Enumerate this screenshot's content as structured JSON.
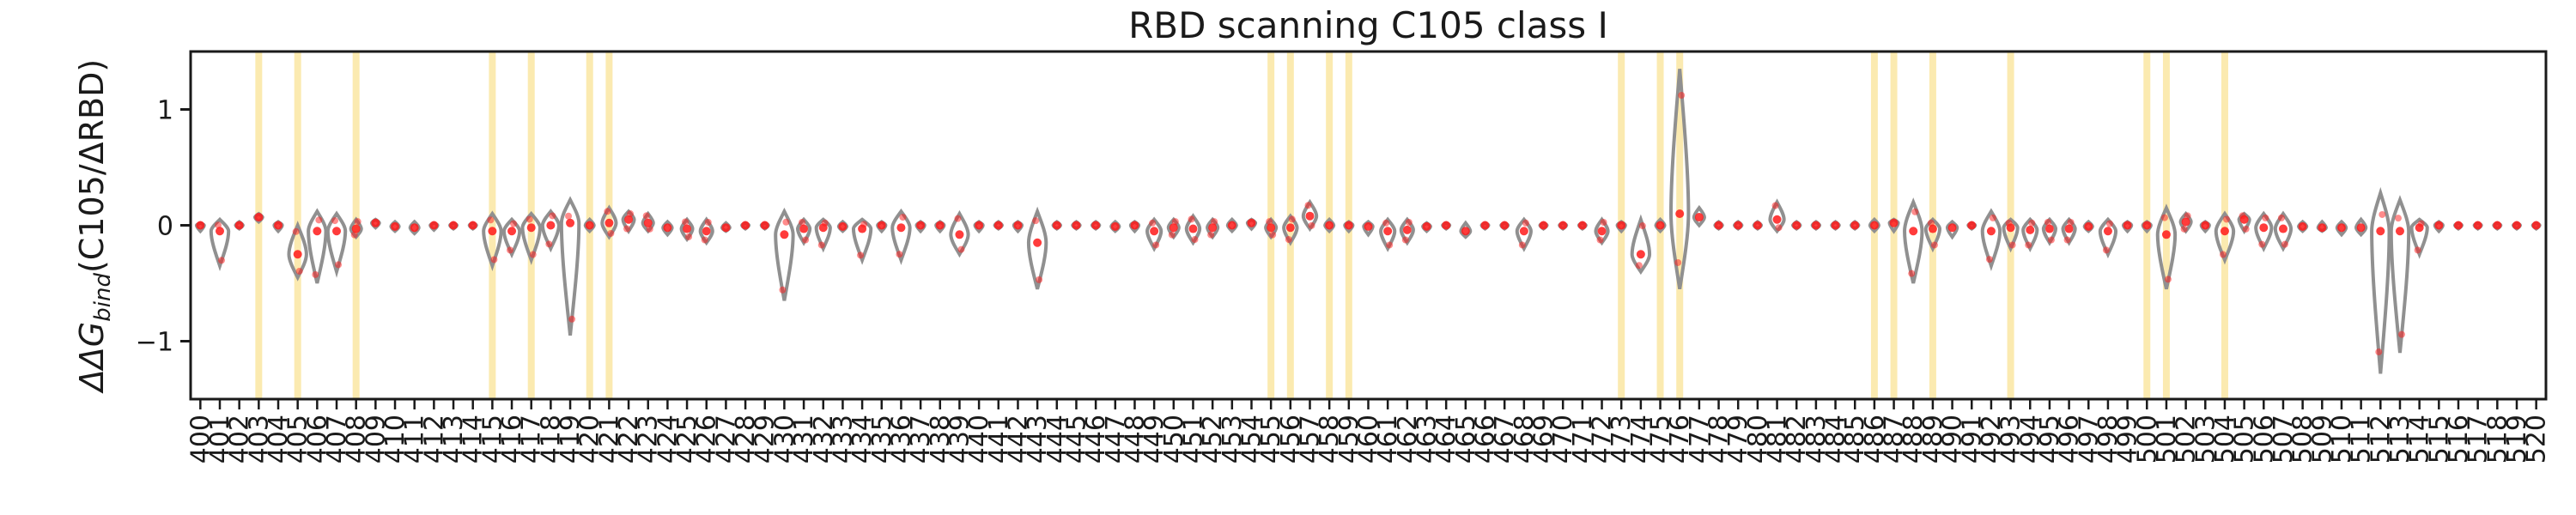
{
  "chart_data": {
    "type": "violin",
    "title": "RBD scanning C105 class I",
    "ylabel_parts": {
      "delta": "ΔΔG",
      "subscript": "bind",
      "rest": "(C105/ΔRBD)"
    },
    "xlabel": "",
    "x_range": [
      400,
      520
    ],
    "ylim": [
      -1.5,
      1.5
    ],
    "y_ticks": [
      -1,
      0,
      1
    ],
    "grid": false,
    "legend": "none",
    "colors": {
      "violin_stroke": "#909090",
      "point": "#ff1a1a",
      "highlight_band": "#fbeab0",
      "axis": "#1a1a1a"
    },
    "highlighted_sites": [
      403,
      405,
      408,
      415,
      417,
      420,
      421,
      455,
      456,
      458,
      459,
      473,
      475,
      476,
      486,
      487,
      489,
      493,
      500,
      501,
      504
    ],
    "sites": [
      {
        "site": 400,
        "min": -0.05,
        "max": 0.02,
        "center": 0.0
      },
      {
        "site": 401,
        "min": -0.35,
        "max": 0.05,
        "center": -0.05
      },
      {
        "site": 402,
        "min": -0.03,
        "max": 0.03,
        "center": 0.0
      },
      {
        "site": 403,
        "min": 0.03,
        "max": 0.1,
        "center": 0.07
      },
      {
        "site": 404,
        "min": -0.05,
        "max": 0.03,
        "center": 0.0
      },
      {
        "site": 405,
        "min": -0.45,
        "max": 0.0,
        "center": -0.25
      },
      {
        "site": 406,
        "min": -0.5,
        "max": 0.12,
        "center": -0.05
      },
      {
        "site": 407,
        "min": -0.4,
        "max": 0.1,
        "center": -0.05
      },
      {
        "site": 408,
        "min": -0.1,
        "max": 0.05,
        "center": -0.03
      },
      {
        "site": 409,
        "min": -0.02,
        "max": 0.05,
        "center": 0.02
      },
      {
        "site": 410,
        "min": -0.05,
        "max": 0.03,
        "center": -0.01
      },
      {
        "site": 411,
        "min": -0.07,
        "max": 0.03,
        "center": -0.02
      },
      {
        "site": 412,
        "min": -0.04,
        "max": 0.02,
        "center": 0.0
      },
      {
        "site": 413,
        "min": -0.03,
        "max": 0.02,
        "center": 0.0
      },
      {
        "site": 414,
        "min": -0.03,
        "max": 0.02,
        "center": 0.0
      },
      {
        "site": 415,
        "min": -0.35,
        "max": 0.1,
        "center": -0.05
      },
      {
        "site": 416,
        "min": -0.25,
        "max": 0.05,
        "center": -0.05
      },
      {
        "site": 417,
        "min": -0.3,
        "max": 0.1,
        "center": -0.02
      },
      {
        "site": 418,
        "min": -0.2,
        "max": 0.12,
        "center": 0.0
      },
      {
        "site": 419,
        "min": -0.95,
        "max": 0.22,
        "center": 0.02
      },
      {
        "site": 420,
        "min": -0.05,
        "max": 0.05,
        "center": 0.0
      },
      {
        "site": 421,
        "min": -0.1,
        "max": 0.15,
        "center": 0.02
      },
      {
        "site": 422,
        "min": -0.05,
        "max": 0.12,
        "center": 0.05
      },
      {
        "site": 423,
        "min": -0.05,
        "max": 0.1,
        "center": 0.02
      },
      {
        "site": 424,
        "min": -0.08,
        "max": 0.03,
        "center": -0.02
      },
      {
        "site": 425,
        "min": -0.12,
        "max": 0.05,
        "center": -0.03
      },
      {
        "site": 426,
        "min": -0.15,
        "max": 0.05,
        "center": -0.05
      },
      {
        "site": 427,
        "min": -0.05,
        "max": 0.02,
        "center": -0.02
      },
      {
        "site": 428,
        "min": -0.03,
        "max": 0.02,
        "center": 0.0
      },
      {
        "site": 429,
        "min": -0.03,
        "max": 0.02,
        "center": 0.0
      },
      {
        "site": 430,
        "min": -0.65,
        "max": 0.12,
        "center": -0.08
      },
      {
        "site": 431,
        "min": -0.15,
        "max": 0.05,
        "center": -0.03
      },
      {
        "site": 432,
        "min": -0.2,
        "max": 0.05,
        "center": -0.02
      },
      {
        "site": 433,
        "min": -0.05,
        "max": 0.03,
        "center": -0.01
      },
      {
        "site": 434,
        "min": -0.3,
        "max": 0.05,
        "center": -0.03
      },
      {
        "site": 435,
        "min": -0.05,
        "max": 0.03,
        "center": 0.0
      },
      {
        "site": 436,
        "min": -0.3,
        "max": 0.12,
        "center": -0.02
      },
      {
        "site": 437,
        "min": -0.05,
        "max": 0.03,
        "center": 0.0
      },
      {
        "site": 438,
        "min": -0.05,
        "max": 0.03,
        "center": 0.0
      },
      {
        "site": 439,
        "min": -0.25,
        "max": 0.1,
        "center": -0.08
      },
      {
        "site": 440,
        "min": -0.05,
        "max": 0.03,
        "center": 0.0
      },
      {
        "site": 441,
        "min": -0.03,
        "max": 0.03,
        "center": 0.0
      },
      {
        "site": 442,
        "min": -0.05,
        "max": 0.03,
        "center": 0.0
      },
      {
        "site": 443,
        "min": -0.55,
        "max": 0.12,
        "center": -0.15
      },
      {
        "site": 444,
        "min": -0.03,
        "max": 0.03,
        "center": 0.0
      },
      {
        "site": 445,
        "min": -0.03,
        "max": 0.03,
        "center": 0.0
      },
      {
        "site": 446,
        "min": -0.03,
        "max": 0.03,
        "center": 0.0
      },
      {
        "site": 447,
        "min": -0.05,
        "max": 0.03,
        "center": -0.01
      },
      {
        "site": 448,
        "min": -0.05,
        "max": 0.03,
        "center": 0.0
      },
      {
        "site": 449,
        "min": -0.2,
        "max": 0.05,
        "center": -0.05
      },
      {
        "site": 450,
        "min": -0.1,
        "max": 0.05,
        "center": -0.02
      },
      {
        "site": 451,
        "min": -0.15,
        "max": 0.08,
        "center": -0.03
      },
      {
        "site": 452,
        "min": -0.1,
        "max": 0.05,
        "center": -0.02
      },
      {
        "site": 453,
        "min": -0.05,
        "max": 0.05,
        "center": 0.0
      },
      {
        "site": 454,
        "min": -0.03,
        "max": 0.05,
        "center": 0.02
      },
      {
        "site": 455,
        "min": -0.1,
        "max": 0.05,
        "center": -0.02
      },
      {
        "site": 456,
        "min": -0.15,
        "max": 0.08,
        "center": -0.02
      },
      {
        "site": 457,
        "min": -0.03,
        "max": 0.2,
        "center": 0.08
      },
      {
        "site": 458,
        "min": -0.05,
        "max": 0.05,
        "center": 0.0
      },
      {
        "site": 459,
        "min": -0.05,
        "max": 0.03,
        "center": 0.0
      },
      {
        "site": 460,
        "min": -0.08,
        "max": 0.03,
        "center": -0.01
      },
      {
        "site": 461,
        "min": -0.2,
        "max": 0.05,
        "center": -0.05
      },
      {
        "site": 462,
        "min": -0.15,
        "max": 0.05,
        "center": -0.04
      },
      {
        "site": 463,
        "min": -0.05,
        "max": 0.02,
        "center": -0.01
      },
      {
        "site": 464,
        "min": -0.03,
        "max": 0.02,
        "center": 0.0
      },
      {
        "site": 465,
        "min": -0.1,
        "max": 0.02,
        "center": -0.05
      },
      {
        "site": 466,
        "min": -0.03,
        "max": 0.02,
        "center": 0.0
      },
      {
        "site": 467,
        "min": -0.03,
        "max": 0.02,
        "center": 0.0
      },
      {
        "site": 468,
        "min": -0.2,
        "max": 0.05,
        "center": -0.05
      },
      {
        "site": 469,
        "min": -0.03,
        "max": 0.02,
        "center": 0.0
      },
      {
        "site": 470,
        "min": -0.03,
        "max": 0.02,
        "center": 0.0
      },
      {
        "site": 471,
        "min": -0.03,
        "max": 0.02,
        "center": 0.0
      },
      {
        "site": 472,
        "min": -0.15,
        "max": 0.05,
        "center": -0.05
      },
      {
        "site": 473,
        "min": -0.05,
        "max": 0.03,
        "center": 0.0
      },
      {
        "site": 474,
        "min": -0.4,
        "max": 0.05,
        "center": -0.25
      },
      {
        "site": 475,
        "min": -0.05,
        "max": 0.05,
        "center": 0.0
      },
      {
        "site": 476,
        "min": -0.55,
        "max": 1.35,
        "center": 0.1
      },
      {
        "site": 477,
        "min": 0.0,
        "max": 0.15,
        "center": 0.07
      },
      {
        "site": 478,
        "min": -0.03,
        "max": 0.03,
        "center": 0.0
      },
      {
        "site": 479,
        "min": -0.03,
        "max": 0.03,
        "center": 0.0
      },
      {
        "site": 480,
        "min": -0.03,
        "max": 0.03,
        "center": 0.0
      },
      {
        "site": 481,
        "min": -0.05,
        "max": 0.2,
        "center": 0.05
      },
      {
        "site": 482,
        "min": -0.03,
        "max": 0.03,
        "center": 0.0
      },
      {
        "site": 483,
        "min": -0.03,
        "max": 0.03,
        "center": 0.0
      },
      {
        "site": 484,
        "min": -0.03,
        "max": 0.03,
        "center": 0.0
      },
      {
        "site": 485,
        "min": -0.03,
        "max": 0.03,
        "center": 0.0
      },
      {
        "site": 486,
        "min": -0.05,
        "max": 0.05,
        "center": 0.0
      },
      {
        "site": 487,
        "min": -0.05,
        "max": 0.05,
        "center": 0.02
      },
      {
        "site": 488,
        "min": -0.5,
        "max": 0.2,
        "center": -0.05
      },
      {
        "site": 489,
        "min": -0.2,
        "max": 0.05,
        "center": -0.03
      },
      {
        "site": 490,
        "min": -0.1,
        "max": 0.03,
        "center": -0.02
      },
      {
        "site": 491,
        "min": -0.03,
        "max": 0.02,
        "center": 0.0
      },
      {
        "site": 492,
        "min": -0.35,
        "max": 0.12,
        "center": -0.05
      },
      {
        "site": 493,
        "min": -0.2,
        "max": 0.05,
        "center": -0.02
      },
      {
        "site": 494,
        "min": -0.2,
        "max": 0.05,
        "center": -0.04
      },
      {
        "site": 495,
        "min": -0.15,
        "max": 0.05,
        "center": -0.03
      },
      {
        "site": 496,
        "min": -0.15,
        "max": 0.05,
        "center": -0.03
      },
      {
        "site": 497,
        "min": -0.05,
        "max": 0.03,
        "center": -0.01
      },
      {
        "site": 498,
        "min": -0.25,
        "max": 0.05,
        "center": -0.05
      },
      {
        "site": 499,
        "min": -0.05,
        "max": 0.03,
        "center": 0.0
      },
      {
        "site": 500,
        "min": -0.05,
        "max": 0.03,
        "center": 0.0
      },
      {
        "site": 501,
        "min": -0.55,
        "max": 0.15,
        "center": -0.08
      },
      {
        "site": 502,
        "min": -0.05,
        "max": 0.1,
        "center": 0.03
      },
      {
        "site": 503,
        "min": -0.05,
        "max": 0.03,
        "center": 0.0
      },
      {
        "site": 504,
        "min": -0.3,
        "max": 0.1,
        "center": -0.05
      },
      {
        "site": 505,
        "min": -0.05,
        "max": 0.1,
        "center": 0.05
      },
      {
        "site": 506,
        "min": -0.2,
        "max": 0.1,
        "center": -0.02
      },
      {
        "site": 507,
        "min": -0.2,
        "max": 0.1,
        "center": -0.03
      },
      {
        "site": 508,
        "min": -0.05,
        "max": 0.03,
        "center": -0.01
      },
      {
        "site": 509,
        "min": -0.05,
        "max": 0.03,
        "center": -0.02
      },
      {
        "site": 510,
        "min": -0.08,
        "max": 0.03,
        "center": -0.02
      },
      {
        "site": 511,
        "min": -0.08,
        "max": 0.05,
        "center": -0.02
      },
      {
        "site": 512,
        "min": -1.28,
        "max": 0.28,
        "center": -0.05
      },
      {
        "site": 513,
        "min": -1.1,
        "max": 0.22,
        "center": -0.05
      },
      {
        "site": 514,
        "min": -0.25,
        "max": 0.05,
        "center": -0.02
      },
      {
        "site": 515,
        "min": -0.05,
        "max": 0.03,
        "center": 0.0
      },
      {
        "site": 516,
        "min": -0.03,
        "max": 0.02,
        "center": 0.0
      },
      {
        "site": 517,
        "min": -0.03,
        "max": 0.02,
        "center": 0.0
      },
      {
        "site": 518,
        "min": -0.03,
        "max": 0.02,
        "center": 0.0
      },
      {
        "site": 519,
        "min": -0.03,
        "max": 0.02,
        "center": 0.0
      },
      {
        "site": 520,
        "min": -0.03,
        "max": 0.02,
        "center": 0.0
      }
    ]
  }
}
